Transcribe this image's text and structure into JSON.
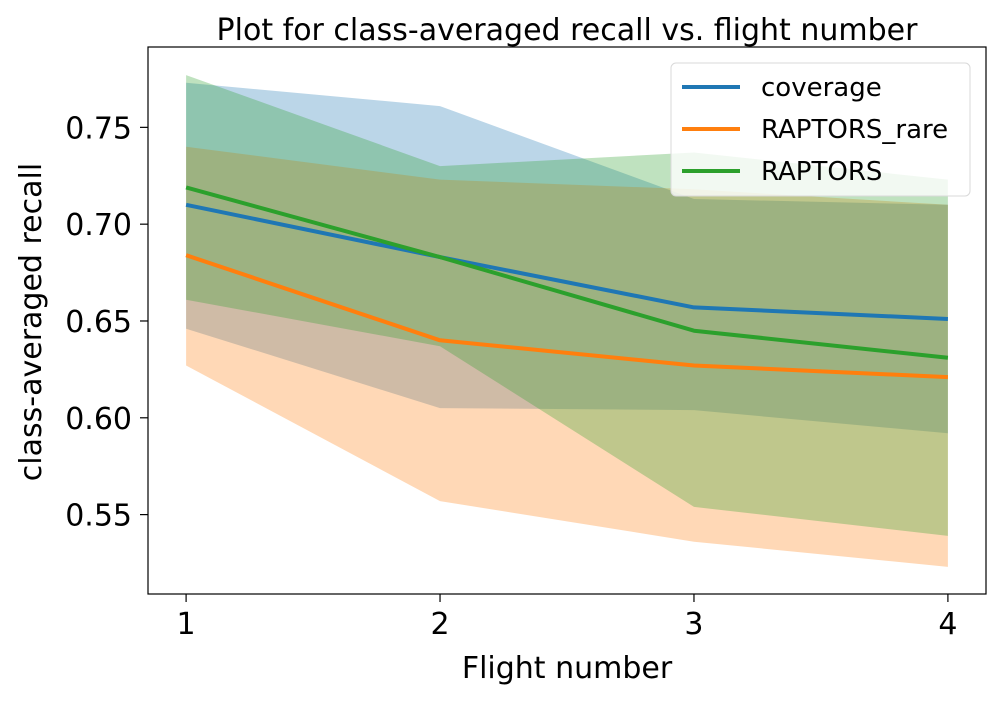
{
  "chart_data": {
    "type": "line",
    "title": "Plot for class-averaged recall vs. flight number",
    "xlabel": "Flight number",
    "ylabel": "class-averaged recall",
    "x": [
      1,
      2,
      3,
      4
    ],
    "x_tick_labels": [
      "1",
      "2",
      "3",
      "4"
    ],
    "xlim": [
      0.85,
      4.15
    ],
    "y_ticks": [
      0.55,
      0.6,
      0.65,
      0.7,
      0.75
    ],
    "y_tick_labels": [
      "0.55",
      "0.60",
      "0.65",
      "0.70",
      "0.75"
    ],
    "ylim": [
      0.509,
      0.7915
    ],
    "grid": false,
    "legend_position": "top-right",
    "series": [
      {
        "name": "coverage",
        "color": "#1f77b4",
        "band_opacity": 0.3,
        "values": [
          0.71,
          0.683,
          0.657,
          0.651
        ],
        "band_upper": [
          0.773,
          0.761,
          0.713,
          0.71
        ],
        "band_lower": [
          0.646,
          0.605,
          0.604,
          0.592
        ]
      },
      {
        "name": "RAPTORS_rare",
        "color": "#ff7f0e",
        "band_opacity": 0.3,
        "values": [
          0.684,
          0.64,
          0.627,
          0.621
        ],
        "band_upper": [
          0.74,
          0.723,
          0.718,
          0.71
        ],
        "band_lower": [
          0.627,
          0.557,
          0.536,
          0.523
        ]
      },
      {
        "name": "RAPTORS",
        "color": "#2ca02c",
        "band_opacity": 0.3,
        "values": [
          0.719,
          0.683,
          0.645,
          0.631
        ],
        "band_upper": [
          0.777,
          0.73,
          0.737,
          0.723
        ],
        "band_lower": [
          0.661,
          0.637,
          0.554,
          0.539
        ]
      }
    ]
  }
}
